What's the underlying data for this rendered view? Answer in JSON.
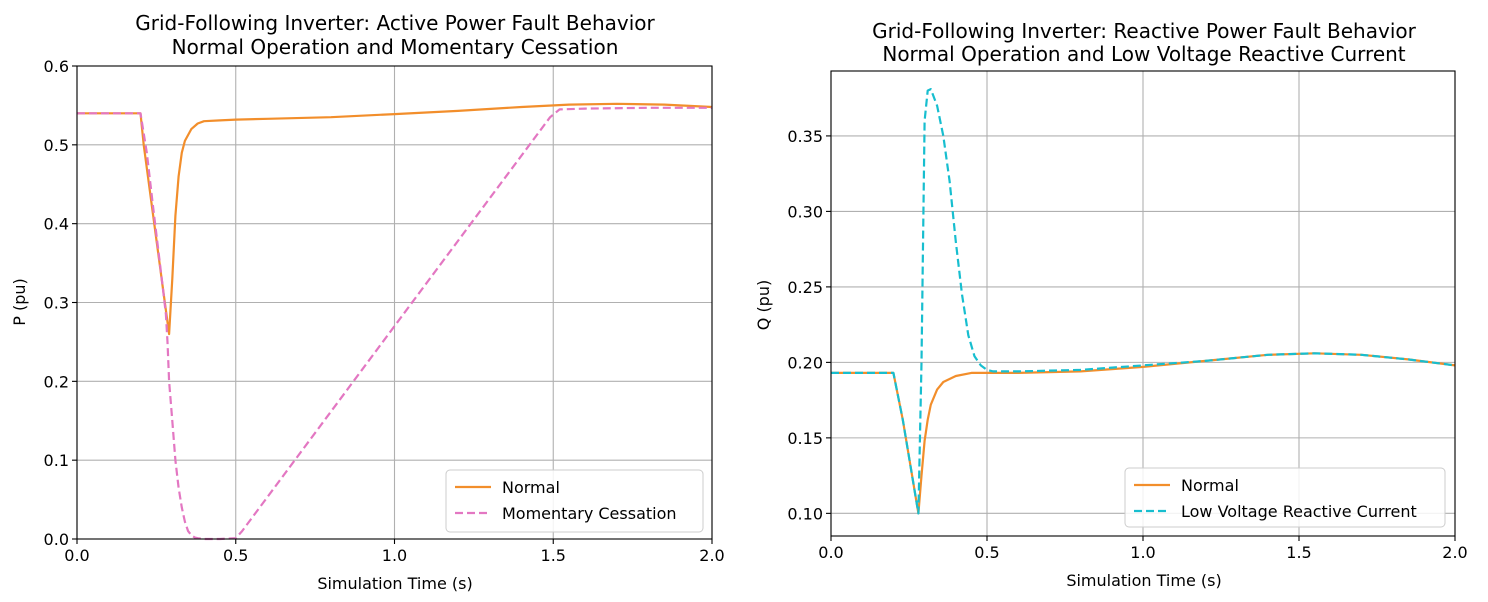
{
  "chart_data": [
    {
      "type": "line",
      "title": [
        "Grid-Following Inverter: Active Power Fault Behavior",
        "Normal Operation and Momentary Cessation"
      ],
      "xlabel": "Simulation Time (s)",
      "ylabel": "P (pu)",
      "xlim": [
        0.0,
        2.0
      ],
      "ylim": [
        0.0,
        0.6
      ],
      "xticks": [
        "0.0",
        "0.5",
        "1.0",
        "1.5",
        "2.0"
      ],
      "yticks": [
        "0.0",
        "0.1",
        "0.2",
        "0.3",
        "0.4",
        "0.5",
        "0.6"
      ],
      "grid": true,
      "legend_position": "lower right",
      "series": [
        {
          "name": "Normal",
          "color": "#f28e2b",
          "style": "solid",
          "x": [
            0.0,
            0.2,
            0.21,
            0.24,
            0.27,
            0.29,
            0.3,
            0.31,
            0.32,
            0.33,
            0.34,
            0.36,
            0.38,
            0.4,
            0.45,
            0.5,
            0.6,
            0.8,
            1.0,
            1.2,
            1.4,
            1.55,
            1.7,
            1.85,
            2.0
          ],
          "y": [
            0.54,
            0.54,
            0.5,
            0.41,
            0.32,
            0.26,
            0.33,
            0.41,
            0.46,
            0.49,
            0.505,
            0.52,
            0.527,
            0.53,
            0.531,
            0.532,
            0.533,
            0.535,
            0.539,
            0.543,
            0.548,
            0.551,
            0.552,
            0.551,
            0.548
          ]
        },
        {
          "name": "Momentary Cessation",
          "color": "#e377c2",
          "style": "dashed",
          "x": [
            0.0,
            0.2,
            0.22,
            0.24,
            0.27,
            0.28,
            0.285,
            0.29,
            0.3,
            0.31,
            0.32,
            0.33,
            0.34,
            0.35,
            0.36,
            0.37,
            0.38,
            0.4,
            0.45,
            0.5,
            0.52,
            1.0,
            1.49,
            1.52,
            1.6,
            1.8,
            2.0
          ],
          "y": [
            0.54,
            0.54,
            0.49,
            0.42,
            0.32,
            0.285,
            0.25,
            0.2,
            0.15,
            0.1,
            0.065,
            0.04,
            0.022,
            0.01,
            0.005,
            0.002,
            0.001,
            0.0,
            0.0,
            0.001,
            0.01,
            0.27,
            0.535,
            0.545,
            0.546,
            0.547,
            0.547
          ]
        }
      ]
    },
    {
      "type": "line",
      "title": [
        "Grid-Following Inverter: Reactive Power Fault Behavior",
        "Normal Operation and Low Voltage Reactive Current"
      ],
      "xlabel": "Simulation Time (s)",
      "ylabel": "Q (pu)",
      "xlim": [
        0.0,
        2.0
      ],
      "ylim": [
        0.085,
        0.393
      ],
      "xticks": [
        "0.0",
        "0.5",
        "1.0",
        "1.5",
        "2.0"
      ],
      "yticks": [
        "0.10",
        "0.15",
        "0.20",
        "0.25",
        "0.30",
        "0.35"
      ],
      "grid": true,
      "legend_position": "lower right",
      "series": [
        {
          "name": "Normal",
          "color": "#f28e2b",
          "style": "solid",
          "x": [
            0.0,
            0.2,
            0.23,
            0.26,
            0.28,
            0.29,
            0.3,
            0.31,
            0.32,
            0.34,
            0.36,
            0.4,
            0.45,
            0.5,
            0.6,
            0.8,
            1.0,
            1.2,
            1.4,
            1.55,
            1.7,
            1.85,
            2.0
          ],
          "y": [
            0.193,
            0.193,
            0.162,
            0.125,
            0.1,
            0.125,
            0.148,
            0.162,
            0.172,
            0.182,
            0.187,
            0.191,
            0.193,
            0.193,
            0.193,
            0.194,
            0.197,
            0.201,
            0.205,
            0.206,
            0.205,
            0.202,
            0.198
          ]
        },
        {
          "name": "Low Voltage Reactive Current",
          "color": "#17becf",
          "style": "dashed",
          "x": [
            0.0,
            0.2,
            0.23,
            0.26,
            0.28,
            0.29,
            0.3,
            0.31,
            0.32,
            0.34,
            0.36,
            0.38,
            0.4,
            0.42,
            0.44,
            0.46,
            0.48,
            0.5,
            0.52,
            0.6,
            0.8,
            1.0,
            1.2,
            1.4,
            1.55,
            1.7,
            1.85,
            2.0
          ],
          "y": [
            0.193,
            0.193,
            0.162,
            0.125,
            0.1,
            0.2,
            0.36,
            0.38,
            0.381,
            0.37,
            0.35,
            0.32,
            0.28,
            0.245,
            0.218,
            0.204,
            0.198,
            0.195,
            0.194,
            0.194,
            0.195,
            0.198,
            0.201,
            0.205,
            0.206,
            0.205,
            0.202,
            0.198
          ]
        }
      ]
    }
  ]
}
